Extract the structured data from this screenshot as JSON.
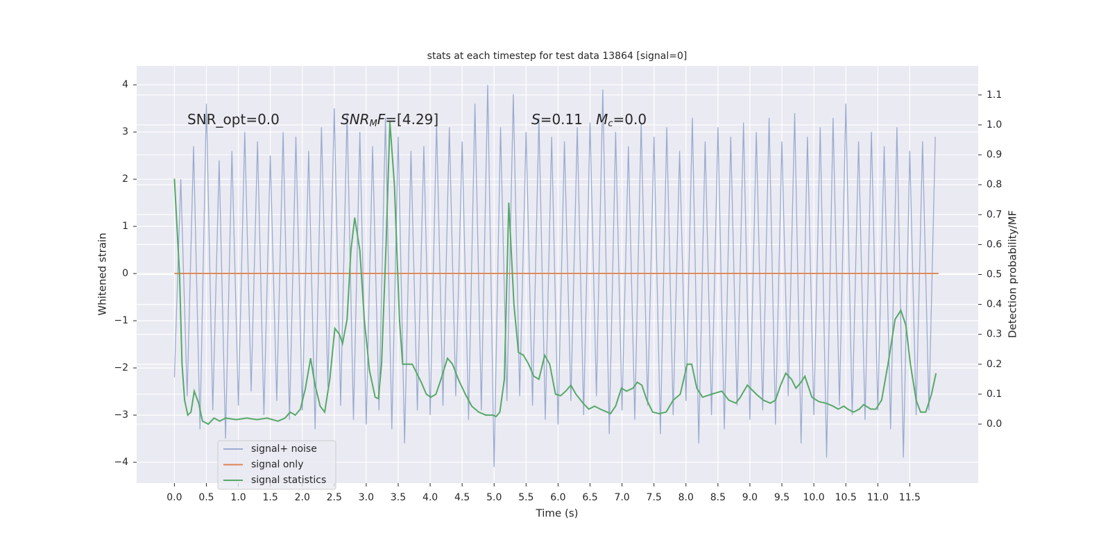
{
  "chart_data": {
    "type": "line",
    "title": "stats at each timestep for test data 13864 [signal=0]",
    "xlabel": "Time (s)",
    "ylabel": "Whitened strain",
    "y2label": "Detection probability/MF",
    "xlim": [
      -0.59,
      12.57
    ],
    "ylim": [
      -4.44,
      4.4
    ],
    "y2lim": [
      -0.197,
      1.197
    ],
    "xticks": [
      {
        "value": 0,
        "label": "0.0"
      },
      0.5,
      {
        "value": 1,
        "label": "1.0"
      },
      1.5,
      {
        "value": 2,
        "label": "2.0"
      },
      2.5,
      {
        "value": 3,
        "label": "3.0"
      },
      3.5,
      {
        "value": 4,
        "label": "4.0"
      },
      4.5,
      {
        "value": 5,
        "label": "5.0"
      },
      5.5,
      {
        "value": 6,
        "label": "6.0"
      },
      6.5,
      {
        "value": 7,
        "label": "7.0"
      },
      7.5,
      {
        "value": 8,
        "label": "8.0"
      },
      8.5,
      {
        "value": 9,
        "label": "9.0"
      },
      9.5,
      {
        "value": 10,
        "label": "10.0"
      },
      10.5,
      {
        "value": 11,
        "label": "11.0"
      },
      11.5
    ],
    "yticks": [
      {
        "value": -4,
        "label": "−4"
      },
      {
        "value": -3,
        "label": "−3"
      },
      {
        "value": -2,
        "label": "−2"
      },
      {
        "value": -1,
        "label": "−1"
      },
      0,
      1,
      2,
      3,
      4
    ],
    "y2ticks": [
      {
        "value": 0,
        "label": "0.0"
      },
      0.1,
      0.2,
      0.3,
      0.4,
      0.5,
      0.6,
      0.7,
      0.8,
      0.9,
      {
        "value": 1,
        "label": "1.0"
      },
      1.1
    ],
    "grid": true,
    "legend": "lower left",
    "annotations": [
      {
        "segments": [
          {
            "text": "SNR_opt=0.0"
          }
        ]
      },
      {
        "segments": [
          {
            "text": "SNR",
            "italic": true
          },
          {
            "text": "M",
            "italic": true,
            "sub": true
          },
          {
            "text": "F",
            "italic": true
          },
          {
            "text": "=[4.29]"
          }
        ]
      },
      {
        "segments": [
          {
            "text": "S",
            "italic": true
          },
          {
            "text": "=0.11   "
          },
          {
            "text": "M",
            "italic": true
          },
          {
            "text": "c",
            "italic": true,
            "sub": true
          },
          {
            "text": "=0.0"
          }
        ]
      }
    ],
    "series": [
      {
        "name": "signal+ noise",
        "color": "#9aabd0",
        "x": [
          0.0,
          0.1,
          0.2,
          0.3,
          0.4,
          0.5,
          0.6,
          0.7,
          0.8,
          0.9,
          1.0,
          1.1,
          1.2,
          1.3,
          1.4,
          1.5,
          1.6,
          1.7,
          1.8,
          1.9,
          2.0,
          2.1,
          2.2,
          2.3,
          2.4,
          2.5,
          2.6,
          2.7,
          2.8,
          2.9,
          3.0,
          3.1,
          3.2,
          3.3,
          3.4,
          3.5,
          3.6,
          3.7,
          3.8,
          3.9,
          4.0,
          4.1,
          4.2,
          4.3,
          4.4,
          4.5,
          4.6,
          4.7,
          4.8,
          4.9,
          5.0,
          5.1,
          5.2,
          5.3,
          5.4,
          5.5,
          5.6,
          5.7,
          5.8,
          5.9,
          6.0,
          6.1,
          6.2,
          6.3,
          6.4,
          6.5,
          6.6,
          6.7,
          6.8,
          6.9,
          7.0,
          7.1,
          7.2,
          7.3,
          7.4,
          7.5,
          7.6,
          7.7,
          7.8,
          7.9,
          8.0,
          8.1,
          8.2,
          8.3,
          8.4,
          8.5,
          8.6,
          8.7,
          8.8,
          8.9,
          9.0,
          9.1,
          9.2,
          9.3,
          9.4,
          9.5,
          9.6,
          9.7,
          9.8,
          9.9,
          10.0,
          10.1,
          10.2,
          10.3,
          10.4,
          10.5,
          10.6,
          10.7,
          10.8,
          10.9,
          11.0,
          11.1,
          11.2,
          11.3,
          11.4,
          11.5,
          11.6,
          11.7,
          11.8,
          11.9
        ],
        "values": [
          -2.2,
          2.0,
          -2.6,
          2.7,
          -3.3,
          3.6,
          -2.9,
          2.4,
          -3.5,
          2.6,
          -2.8,
          3.0,
          -2.5,
          2.8,
          -3.0,
          2.5,
          -2.7,
          3.0,
          -3.1,
          2.9,
          -2.9,
          2.6,
          -3.3,
          3.1,
          -2.4,
          3.5,
          -2.8,
          3.4,
          -3.1,
          3.0,
          -3.2,
          2.7,
          -2.9,
          3.3,
          -3.3,
          2.9,
          -3.6,
          2.6,
          -2.9,
          2.7,
          -3.0,
          3.2,
          -2.8,
          3.1,
          -2.6,
          2.8,
          -3.1,
          3.6,
          -2.9,
          4.0,
          -4.1,
          3.1,
          -2.7,
          3.8,
          -2.6,
          3.0,
          -2.8,
          3.3,
          -3.1,
          2.9,
          -3.2,
          2.8,
          -2.7,
          3.1,
          -3.0,
          3.2,
          -2.6,
          3.9,
          -3.4,
          3.0,
          -2.9,
          2.7,
          -3.1,
          3.2,
          -2.8,
          2.9,
          -3.4,
          3.1,
          -3.0,
          2.6,
          -2.7,
          3.3,
          -3.6,
          2.8,
          -3.0,
          3.1,
          -3.3,
          2.9,
          -2.8,
          3.2,
          -3.1,
          3.0,
          -2.9,
          3.3,
          -3.2,
          2.8,
          -2.6,
          3.4,
          -3.6,
          2.9,
          -3.0,
          3.1,
          -3.9,
          3.3,
          -2.8,
          3.6,
          -3.0,
          2.8,
          -3.1,
          3.0,
          -2.9,
          2.7,
          -3.3,
          3.1,
          -3.9,
          2.6,
          -3.0,
          2.8,
          -2.9,
          2.9
        ]
      },
      {
        "name": "signal only",
        "color": "#dd8452",
        "x": [
          0.0,
          11.95
        ],
        "values": [
          0,
          0
        ]
      },
      {
        "name": "signal statistics",
        "color": "#55a868",
        "axis": "y2",
        "x": [
          0.0,
          0.08,
          0.12,
          0.16,
          0.21,
          0.26,
          0.31,
          0.38,
          0.44,
          0.53,
          0.62,
          0.71,
          0.8,
          0.97,
          1.13,
          1.29,
          1.45,
          1.62,
          1.73,
          1.81,
          1.89,
          1.97,
          2.05,
          2.13,
          2.2,
          2.28,
          2.35,
          2.43,
          2.51,
          2.58,
          2.63,
          2.7,
          2.76,
          2.82,
          2.9,
          2.97,
          3.05,
          3.14,
          3.19,
          3.24,
          3.31,
          3.37,
          3.44,
          3.52,
          3.57,
          3.65,
          3.72,
          3.79,
          3.86,
          3.94,
          4.01,
          4.09,
          4.17,
          4.27,
          4.35,
          4.44,
          4.55,
          4.65,
          4.76,
          4.87,
          4.98,
          5.03,
          5.09,
          5.16,
          5.23,
          5.31,
          5.38,
          5.46,
          5.54,
          5.62,
          5.7,
          5.79,
          5.87,
          5.96,
          6.04,
          6.12,
          6.2,
          6.28,
          6.39,
          6.48,
          6.57,
          6.66,
          6.77,
          6.82,
          6.9,
          6.99,
          7.07,
          7.17,
          7.24,
          7.31,
          7.39,
          7.48,
          7.58,
          7.69,
          7.8,
          7.91,
          8.02,
          8.09,
          8.17,
          8.26,
          8.4,
          8.56,
          8.67,
          8.78,
          8.85,
          8.96,
          9.1,
          9.21,
          9.32,
          9.4,
          9.48,
          9.56,
          9.65,
          9.72,
          9.8,
          9.86,
          9.97,
          10.08,
          10.19,
          10.3,
          10.38,
          10.47,
          10.53,
          10.62,
          10.71,
          10.78,
          10.89,
          10.97,
          11.06,
          11.16,
          11.27,
          11.36,
          11.44,
          11.51,
          11.6,
          11.67,
          11.75,
          11.84,
          11.91
        ],
        "values": [
          0.82,
          0.5,
          0.2,
          0.08,
          0.03,
          0.04,
          0.11,
          0.07,
          0.01,
          0.0,
          0.02,
          0.01,
          0.02,
          0.015,
          0.02,
          0.015,
          0.02,
          0.01,
          0.02,
          0.04,
          0.03,
          0.05,
          0.12,
          0.22,
          0.13,
          0.06,
          0.04,
          0.15,
          0.32,
          0.3,
          0.27,
          0.35,
          0.58,
          0.69,
          0.58,
          0.35,
          0.18,
          0.09,
          0.085,
          0.2,
          0.6,
          1.01,
          0.8,
          0.35,
          0.2,
          0.2,
          0.2,
          0.17,
          0.14,
          0.1,
          0.09,
          0.1,
          0.15,
          0.22,
          0.2,
          0.15,
          0.1,
          0.06,
          0.04,
          0.03,
          0.03,
          0.025,
          0.04,
          0.15,
          0.74,
          0.4,
          0.24,
          0.23,
          0.2,
          0.16,
          0.15,
          0.23,
          0.2,
          0.1,
          0.095,
          0.11,
          0.13,
          0.1,
          0.07,
          0.05,
          0.06,
          0.05,
          0.04,
          0.035,
          0.06,
          0.12,
          0.11,
          0.12,
          0.14,
          0.13,
          0.08,
          0.04,
          0.035,
          0.04,
          0.08,
          0.1,
          0.2,
          0.2,
          0.12,
          0.09,
          0.1,
          0.11,
          0.08,
          0.07,
          0.09,
          0.13,
          0.1,
          0.08,
          0.07,
          0.08,
          0.13,
          0.17,
          0.15,
          0.12,
          0.14,
          0.16,
          0.09,
          0.075,
          0.07,
          0.06,
          0.05,
          0.06,
          0.05,
          0.04,
          0.05,
          0.065,
          0.05,
          0.05,
          0.08,
          0.2,
          0.35,
          0.38,
          0.33,
          0.2,
          0.08,
          0.04,
          0.04,
          0.1,
          0.17
        ]
      }
    ]
  }
}
